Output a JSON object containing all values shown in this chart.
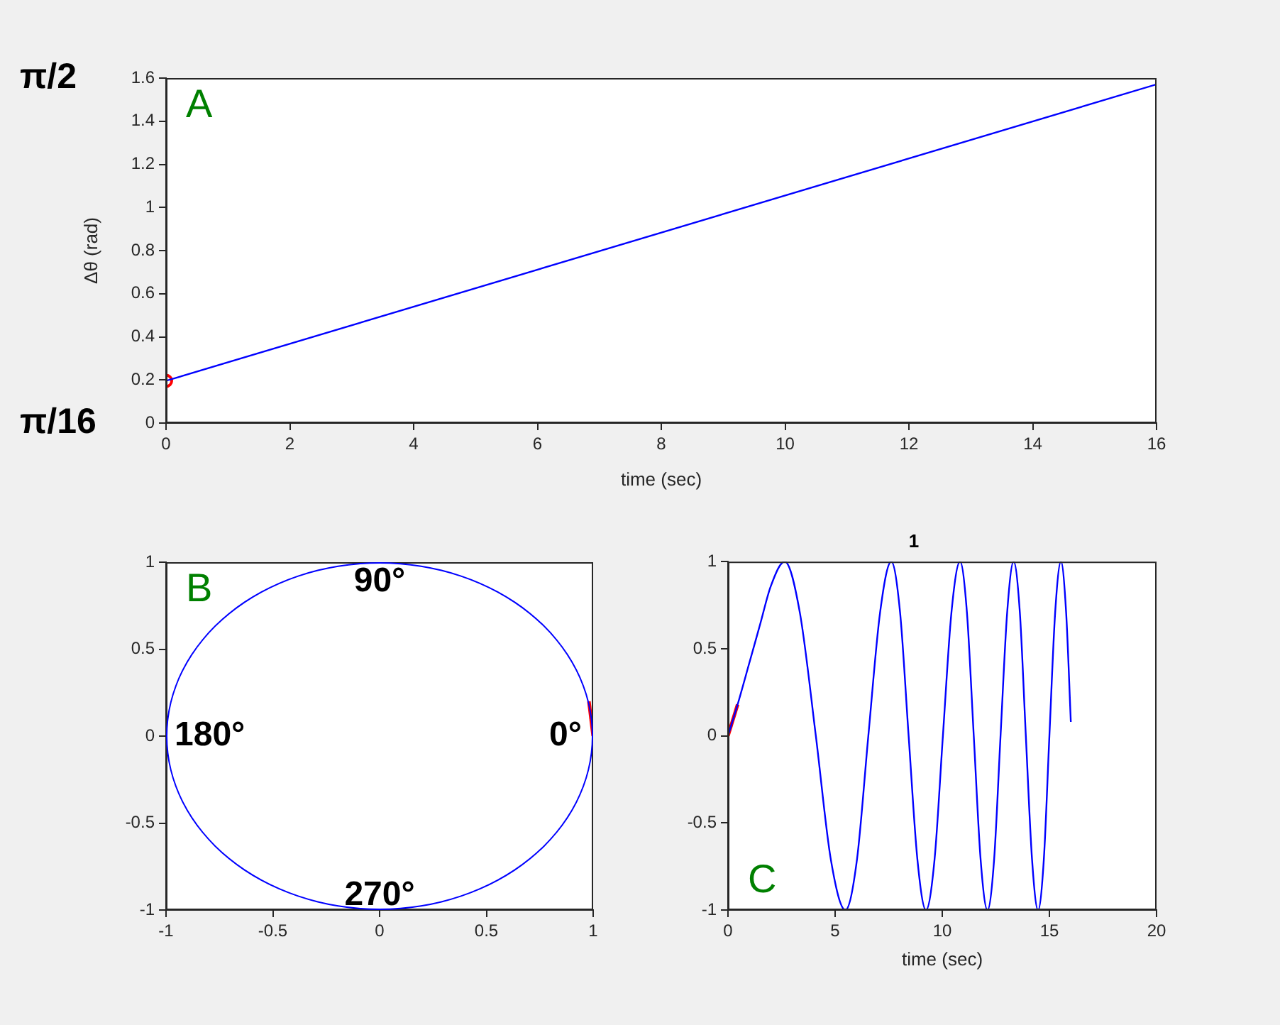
{
  "chart_data": [
    {
      "type": "line",
      "xlabel": "time (sec)",
      "ylabel": "Δθ (rad)",
      "annotations": [
        "A",
        "π/2",
        "π/16"
      ],
      "xlim": [
        0,
        16
      ],
      "xticks": [
        0,
        2,
        4,
        6,
        8,
        10,
        12,
        14,
        16
      ],
      "ylim": [
        0,
        1.6
      ],
      "yticks": [
        0,
        0.2,
        0.4,
        0.6,
        0.8,
        1,
        1.2,
        1.4,
        1.6
      ],
      "series": [
        {
          "color": "#0000ff",
          "x": [
            0,
            16
          ],
          "values": [
            0.196,
            1.571
          ],
          "marker": "none"
        },
        {
          "type": "scatter",
          "color": "#ff0000",
          "x": [
            0
          ],
          "values": [
            0.196
          ],
          "marker": "circle"
        }
      ]
    },
    {
      "type": "line",
      "annotations": [
        "B",
        "90°",
        "180°",
        "0°",
        "270°"
      ],
      "xlim": [
        -1,
        1
      ],
      "xticks": [
        -1,
        -0.5,
        0,
        0.5,
        1
      ],
      "ylim": [
        -1,
        1
      ],
      "yticks": [
        -1,
        -0.5,
        0,
        0.5,
        1
      ],
      "marker": "none",
      "series": [
        {
          "color": "#ff0000",
          "x": [
            1,
            0.99,
            0.98
          ],
          "values": [
            0,
            0.1,
            0.2
          ]
        }
      ]
    },
    {
      "type": "line",
      "title": "1",
      "xlabel": "time (sec)",
      "annotations": [
        "C"
      ],
      "xlim": [
        0,
        20
      ],
      "xticks": [
        0,
        5,
        10,
        15,
        20
      ],
      "ylim": [
        -1,
        1
      ],
      "yticks": [
        -1,
        -0.5,
        0,
        0.5,
        1
      ],
      "marker": "none",
      "series": [
        {
          "color": "#0000ff",
          "x": [
            0,
            0.45,
            1,
            1.5,
            2,
            2.65,
            3.35,
            4.1,
            4.8,
            5.48,
            6.02,
            6.55,
            7.1,
            7.62,
            8.03,
            8.43,
            8.84,
            9.24,
            9.64,
            10.03,
            10.43,
            10.83,
            11.15,
            11.47,
            11.79,
            12.11,
            12.42,
            12.72,
            13.03,
            13.33,
            13.62,
            13.9,
            14.19,
            14.47,
            14.74,
            15.0,
            15.27,
            15.54,
            15.78,
            16.0
          ],
          "values": [
            0,
            0.18,
            0.42,
            0.64,
            0.86,
            1,
            0.71,
            0,
            -0.71,
            -1,
            -0.71,
            0,
            0.71,
            1,
            0.71,
            0,
            -0.71,
            -1,
            -0.71,
            0,
            0.71,
            1,
            0.71,
            0,
            -0.71,
            -1,
            -0.71,
            0,
            0.71,
            1,
            0.71,
            0,
            -0.71,
            -1,
            -0.71,
            0,
            0.71,
            1,
            0.71,
            0.08
          ]
        },
        {
          "color": "#ff0000",
          "x": [
            0,
            0.45
          ],
          "values": [
            0,
            0.18
          ]
        }
      ]
    }
  ]
}
